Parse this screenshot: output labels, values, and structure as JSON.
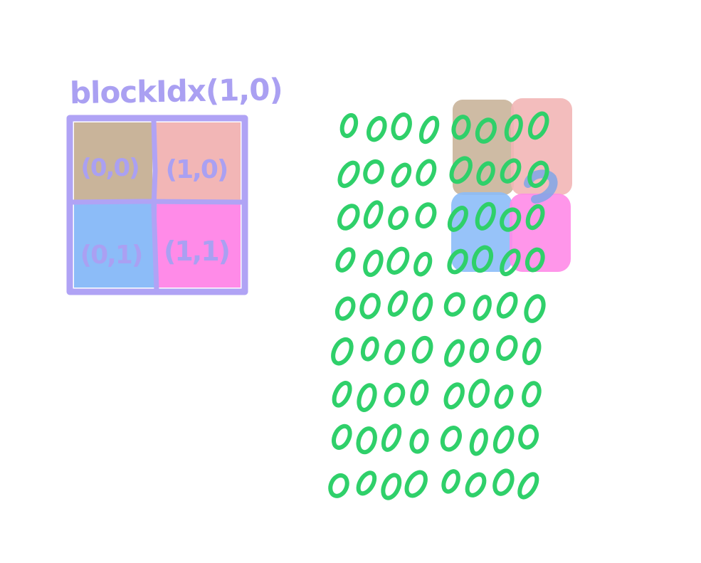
{
  "block_label": "blockIdx(1,0)",
  "threads": [
    {
      "label": "(0,0)",
      "color": "#c9b49a"
    },
    {
      "label": "(1,0)",
      "color": "#f2b6b6"
    },
    {
      "label": "(0,1)",
      "color": "#8cbcf8"
    },
    {
      "label": "(1,1)",
      "color": "#ff8be8"
    }
  ],
  "colors": {
    "block_border": "#b0a3f5",
    "label_text": "#aaa0f2",
    "element_stroke": "#2fd06a"
  },
  "element_glyph": "0",
  "grid": {
    "rows": 9,
    "cols": 8
  }
}
